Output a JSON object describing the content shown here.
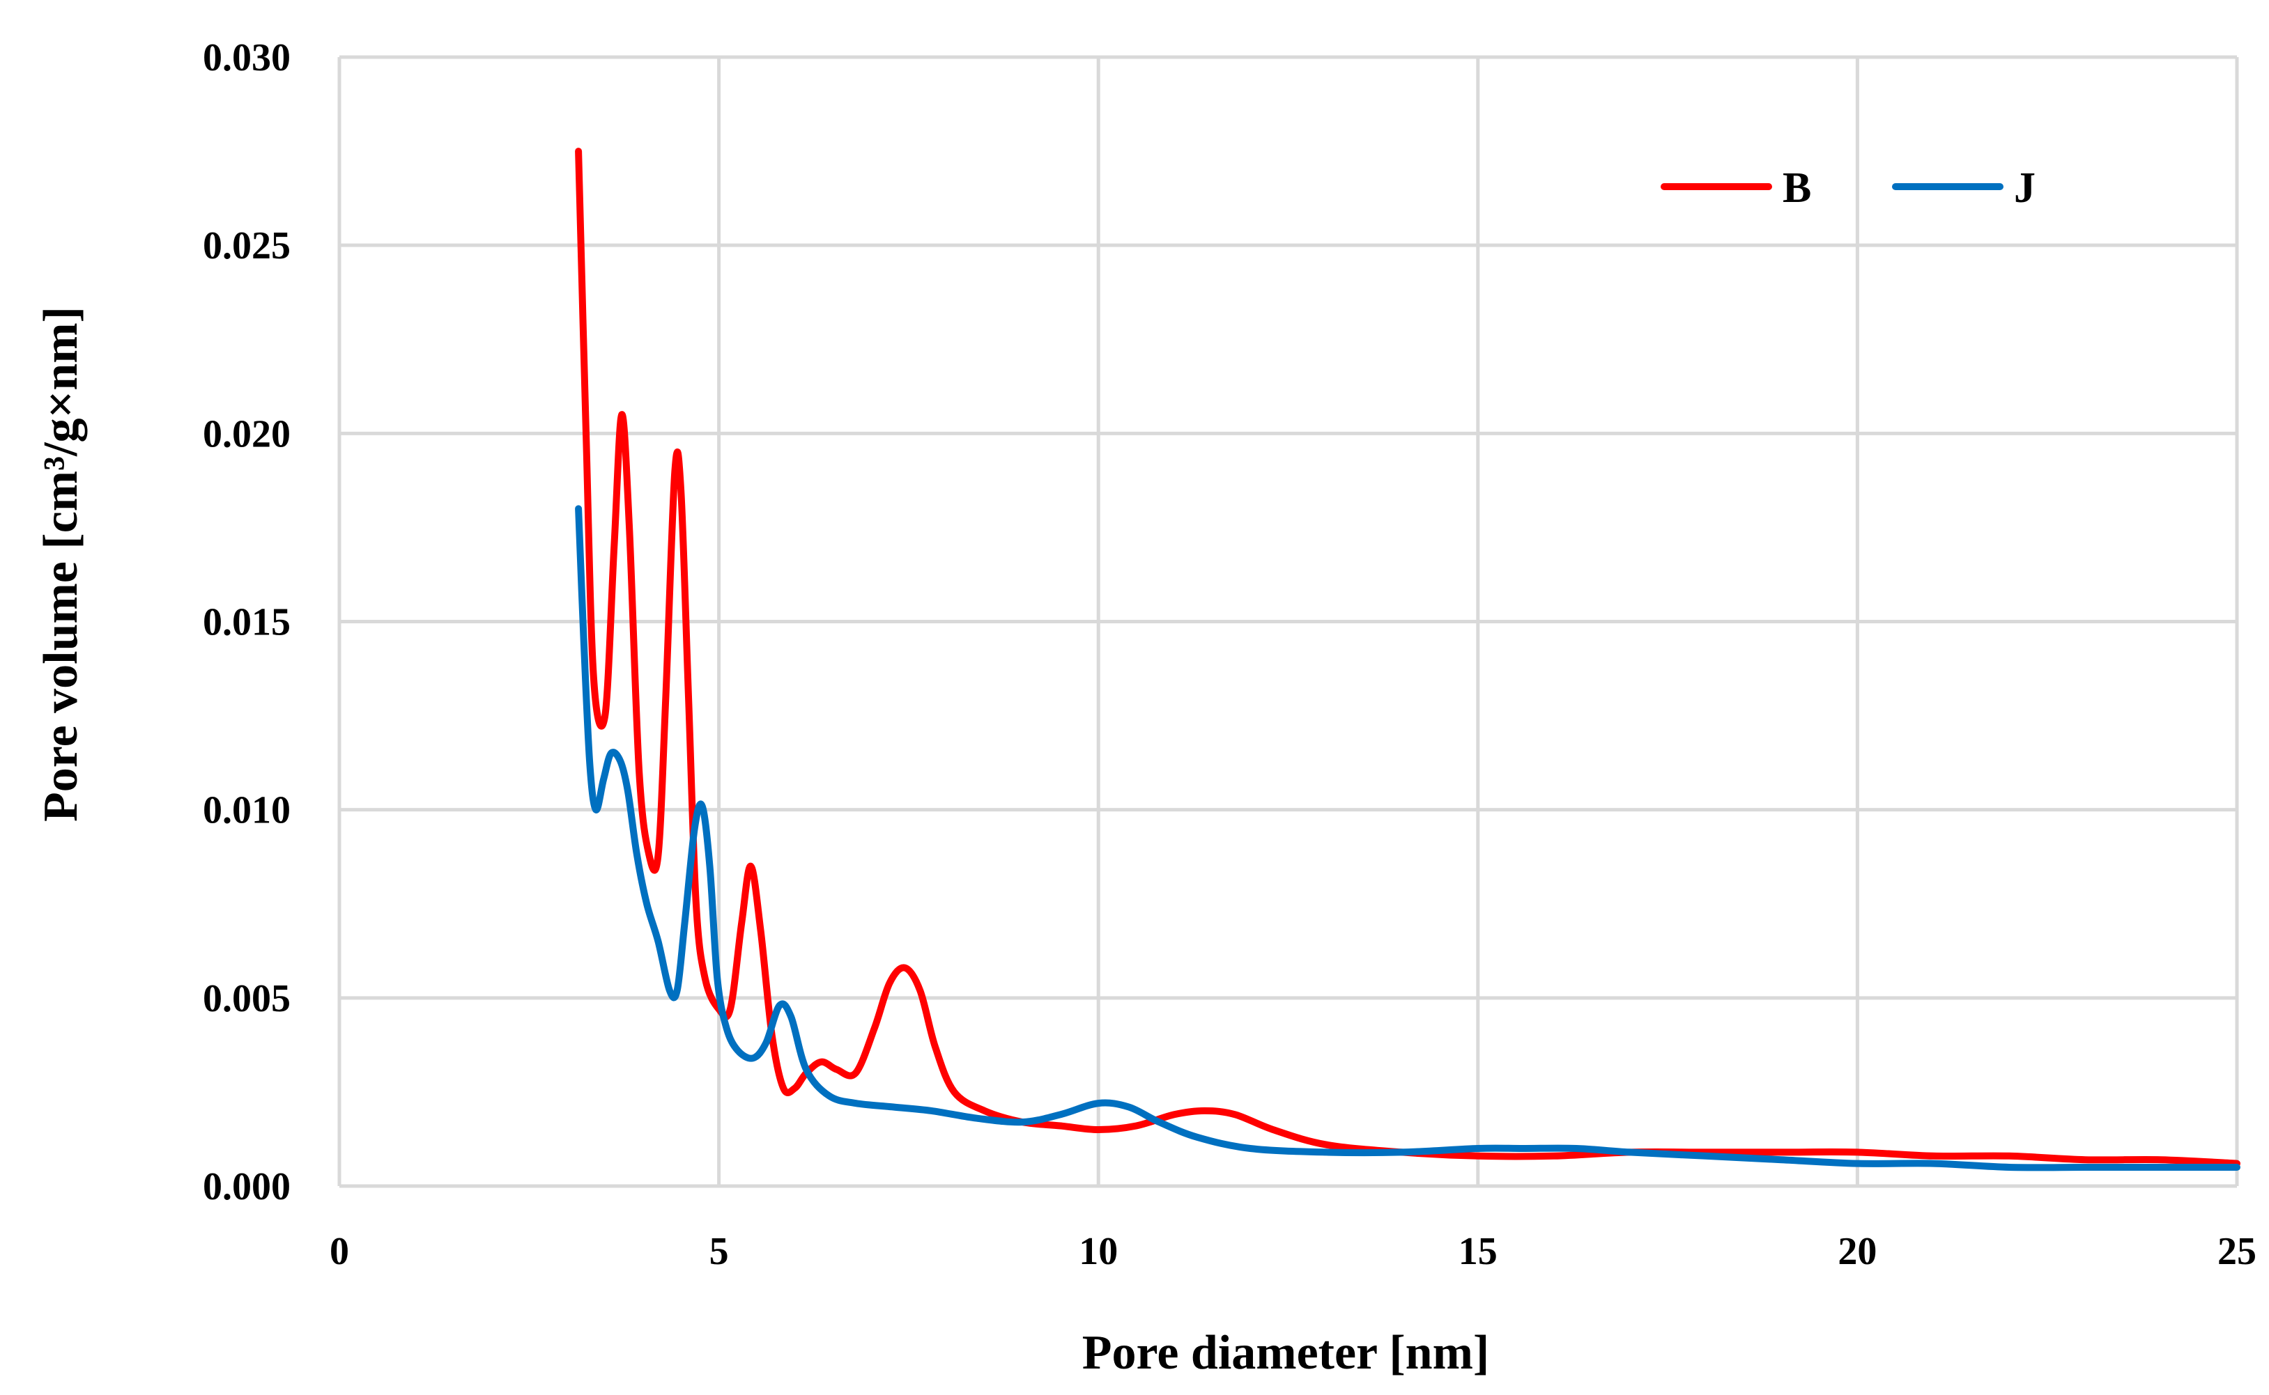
{
  "chart_data": {
    "type": "line",
    "title": "",
    "xlabel": "Pore diameter [nm]",
    "ylabel": "Pore volume [cm³/g×nm]",
    "xlim": [
      0,
      25
    ],
    "ylim": [
      0,
      0.03
    ],
    "x_ticks": [
      0,
      5,
      10,
      15,
      20,
      25
    ],
    "y_ticks": [
      0,
      0.005,
      0.01,
      0.015,
      0.02,
      0.025,
      0.03
    ],
    "x_tick_labels": [
      "0",
      "5",
      "10",
      "15",
      "20",
      "25"
    ],
    "y_tick_labels": [
      "0.000",
      "0.005",
      "0.010",
      "0.015",
      "0.020",
      "0.025",
      "0.030"
    ],
    "grid": true,
    "legend_position": "top-right",
    "series": [
      {
        "name": "B",
        "color": "#ff0000",
        "points": [
          [
            3.15,
            0.0275
          ],
          [
            3.25,
            0.02
          ],
          [
            3.35,
            0.0135
          ],
          [
            3.5,
            0.0125
          ],
          [
            3.62,
            0.017
          ],
          [
            3.72,
            0.0205
          ],
          [
            3.82,
            0.0175
          ],
          [
            3.95,
            0.011
          ],
          [
            4.08,
            0.0088
          ],
          [
            4.2,
            0.0088
          ],
          [
            4.3,
            0.013
          ],
          [
            4.42,
            0.019
          ],
          [
            4.5,
            0.0185
          ],
          [
            4.6,
            0.013
          ],
          [
            4.7,
            0.0075
          ],
          [
            4.82,
            0.0055
          ],
          [
            5.0,
            0.0047
          ],
          [
            5.15,
            0.0047
          ],
          [
            5.3,
            0.007
          ],
          [
            5.42,
            0.0085
          ],
          [
            5.55,
            0.0068
          ],
          [
            5.7,
            0.004
          ],
          [
            5.85,
            0.0026
          ],
          [
            6.0,
            0.0026
          ],
          [
            6.15,
            0.003
          ],
          [
            6.35,
            0.0033
          ],
          [
            6.55,
            0.0031
          ],
          [
            6.8,
            0.003
          ],
          [
            7.05,
            0.0042
          ],
          [
            7.25,
            0.0054
          ],
          [
            7.45,
            0.0058
          ],
          [
            7.65,
            0.0052
          ],
          [
            7.85,
            0.0037
          ],
          [
            8.1,
            0.0025
          ],
          [
            8.5,
            0.002
          ],
          [
            9.0,
            0.0017
          ],
          [
            9.5,
            0.0016
          ],
          [
            10.0,
            0.0015
          ],
          [
            10.5,
            0.0016
          ],
          [
            11.0,
            0.0019
          ],
          [
            11.4,
            0.002
          ],
          [
            11.8,
            0.0019
          ],
          [
            12.3,
            0.0015
          ],
          [
            13.0,
            0.0011
          ],
          [
            14.0,
            0.0009
          ],
          [
            15.0,
            0.0008
          ],
          [
            16.0,
            0.0008
          ],
          [
            17.0,
            0.0009
          ],
          [
            18.0,
            0.0009
          ],
          [
            19.0,
            0.0009
          ],
          [
            20.0,
            0.0009
          ],
          [
            21.0,
            0.0008
          ],
          [
            22.0,
            0.0008
          ],
          [
            23.0,
            0.0007
          ],
          [
            24.0,
            0.0007
          ],
          [
            25.0,
            0.0006
          ]
        ]
      },
      {
        "name": "J",
        "color": "#0070c0",
        "points": [
          [
            3.15,
            0.018
          ],
          [
            3.22,
            0.0145
          ],
          [
            3.3,
            0.0112
          ],
          [
            3.38,
            0.01
          ],
          [
            3.48,
            0.0108
          ],
          [
            3.58,
            0.0115
          ],
          [
            3.7,
            0.0113
          ],
          [
            3.8,
            0.0105
          ],
          [
            3.92,
            0.0088
          ],
          [
            4.05,
            0.0075
          ],
          [
            4.2,
            0.0065
          ],
          [
            4.35,
            0.0052
          ],
          [
            4.45,
            0.0052
          ],
          [
            4.55,
            0.007
          ],
          [
            4.68,
            0.0095
          ],
          [
            4.78,
            0.0101
          ],
          [
            4.88,
            0.0085
          ],
          [
            4.98,
            0.0055
          ],
          [
            5.1,
            0.0042
          ],
          [
            5.25,
            0.0036
          ],
          [
            5.45,
            0.0034
          ],
          [
            5.62,
            0.0038
          ],
          [
            5.8,
            0.0048
          ],
          [
            5.95,
            0.0045
          ],
          [
            6.15,
            0.0031
          ],
          [
            6.45,
            0.0024
          ],
          [
            6.8,
            0.0022
          ],
          [
            7.3,
            0.0021
          ],
          [
            7.8,
            0.002
          ],
          [
            8.4,
            0.0018
          ],
          [
            9.0,
            0.0017
          ],
          [
            9.5,
            0.0019
          ],
          [
            10.0,
            0.0022
          ],
          [
            10.4,
            0.0021
          ],
          [
            10.8,
            0.0017
          ],
          [
            11.3,
            0.0013
          ],
          [
            12.0,
            0.001
          ],
          [
            13.0,
            0.0009
          ],
          [
            14.0,
            0.0009
          ],
          [
            15.0,
            0.001
          ],
          [
            15.6,
            0.001
          ],
          [
            16.3,
            0.001
          ],
          [
            17.0,
            0.0009
          ],
          [
            18.0,
            0.0008
          ],
          [
            19.0,
            0.0007
          ],
          [
            20.0,
            0.0006
          ],
          [
            21.0,
            0.0006
          ],
          [
            22.0,
            0.0005
          ],
          [
            23.0,
            0.0005
          ],
          [
            24.0,
            0.0005
          ],
          [
            25.0,
            0.0005
          ]
        ]
      }
    ]
  }
}
